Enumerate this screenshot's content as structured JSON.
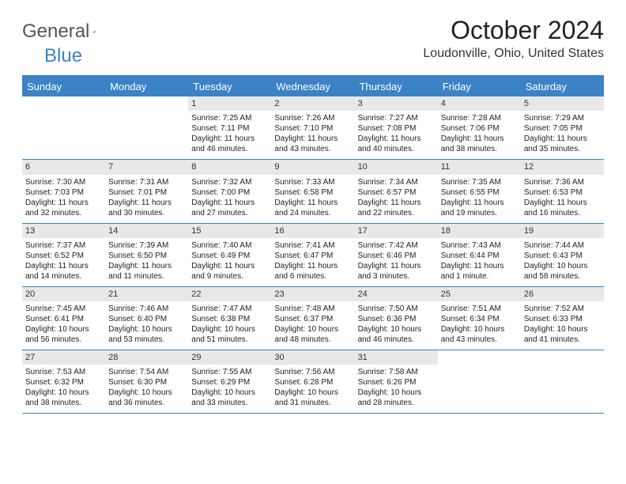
{
  "logo": {
    "text1": "General",
    "text2": "Blue"
  },
  "title": "October 2024",
  "location": "Loudonville, Ohio, United States",
  "colors": {
    "accent": "#3b82c7",
    "headerRow": "#e8e8e8",
    "background": "#ffffff",
    "text": "#222222"
  },
  "dayHeaders": [
    "Sunday",
    "Monday",
    "Tuesday",
    "Wednesday",
    "Thursday",
    "Friday",
    "Saturday"
  ],
  "weeks": [
    [
      {
        "n": "",
        "sr": "",
        "ss": "",
        "dl": ""
      },
      {
        "n": "",
        "sr": "",
        "ss": "",
        "dl": ""
      },
      {
        "n": "1",
        "sr": "Sunrise: 7:25 AM",
        "ss": "Sunset: 7:11 PM",
        "dl": "Daylight: 11 hours and 46 minutes."
      },
      {
        "n": "2",
        "sr": "Sunrise: 7:26 AM",
        "ss": "Sunset: 7:10 PM",
        "dl": "Daylight: 11 hours and 43 minutes."
      },
      {
        "n": "3",
        "sr": "Sunrise: 7:27 AM",
        "ss": "Sunset: 7:08 PM",
        "dl": "Daylight: 11 hours and 40 minutes."
      },
      {
        "n": "4",
        "sr": "Sunrise: 7:28 AM",
        "ss": "Sunset: 7:06 PM",
        "dl": "Daylight: 11 hours and 38 minutes."
      },
      {
        "n": "5",
        "sr": "Sunrise: 7:29 AM",
        "ss": "Sunset: 7:05 PM",
        "dl": "Daylight: 11 hours and 35 minutes."
      }
    ],
    [
      {
        "n": "6",
        "sr": "Sunrise: 7:30 AM",
        "ss": "Sunset: 7:03 PM",
        "dl": "Daylight: 11 hours and 32 minutes."
      },
      {
        "n": "7",
        "sr": "Sunrise: 7:31 AM",
        "ss": "Sunset: 7:01 PM",
        "dl": "Daylight: 11 hours and 30 minutes."
      },
      {
        "n": "8",
        "sr": "Sunrise: 7:32 AM",
        "ss": "Sunset: 7:00 PM",
        "dl": "Daylight: 11 hours and 27 minutes."
      },
      {
        "n": "9",
        "sr": "Sunrise: 7:33 AM",
        "ss": "Sunset: 6:58 PM",
        "dl": "Daylight: 11 hours and 24 minutes."
      },
      {
        "n": "10",
        "sr": "Sunrise: 7:34 AM",
        "ss": "Sunset: 6:57 PM",
        "dl": "Daylight: 11 hours and 22 minutes."
      },
      {
        "n": "11",
        "sr": "Sunrise: 7:35 AM",
        "ss": "Sunset: 6:55 PM",
        "dl": "Daylight: 11 hours and 19 minutes."
      },
      {
        "n": "12",
        "sr": "Sunrise: 7:36 AM",
        "ss": "Sunset: 6:53 PM",
        "dl": "Daylight: 11 hours and 16 minutes."
      }
    ],
    [
      {
        "n": "13",
        "sr": "Sunrise: 7:37 AM",
        "ss": "Sunset: 6:52 PM",
        "dl": "Daylight: 11 hours and 14 minutes."
      },
      {
        "n": "14",
        "sr": "Sunrise: 7:39 AM",
        "ss": "Sunset: 6:50 PM",
        "dl": "Daylight: 11 hours and 11 minutes."
      },
      {
        "n": "15",
        "sr": "Sunrise: 7:40 AM",
        "ss": "Sunset: 6:49 PM",
        "dl": "Daylight: 11 hours and 9 minutes."
      },
      {
        "n": "16",
        "sr": "Sunrise: 7:41 AM",
        "ss": "Sunset: 6:47 PM",
        "dl": "Daylight: 11 hours and 6 minutes."
      },
      {
        "n": "17",
        "sr": "Sunrise: 7:42 AM",
        "ss": "Sunset: 6:46 PM",
        "dl": "Daylight: 11 hours and 3 minutes."
      },
      {
        "n": "18",
        "sr": "Sunrise: 7:43 AM",
        "ss": "Sunset: 6:44 PM",
        "dl": "Daylight: 11 hours and 1 minute."
      },
      {
        "n": "19",
        "sr": "Sunrise: 7:44 AM",
        "ss": "Sunset: 6:43 PM",
        "dl": "Daylight: 10 hours and 58 minutes."
      }
    ],
    [
      {
        "n": "20",
        "sr": "Sunrise: 7:45 AM",
        "ss": "Sunset: 6:41 PM",
        "dl": "Daylight: 10 hours and 56 minutes."
      },
      {
        "n": "21",
        "sr": "Sunrise: 7:46 AM",
        "ss": "Sunset: 6:40 PM",
        "dl": "Daylight: 10 hours and 53 minutes."
      },
      {
        "n": "22",
        "sr": "Sunrise: 7:47 AM",
        "ss": "Sunset: 6:38 PM",
        "dl": "Daylight: 10 hours and 51 minutes."
      },
      {
        "n": "23",
        "sr": "Sunrise: 7:48 AM",
        "ss": "Sunset: 6:37 PM",
        "dl": "Daylight: 10 hours and 48 minutes."
      },
      {
        "n": "24",
        "sr": "Sunrise: 7:50 AM",
        "ss": "Sunset: 6:36 PM",
        "dl": "Daylight: 10 hours and 46 minutes."
      },
      {
        "n": "25",
        "sr": "Sunrise: 7:51 AM",
        "ss": "Sunset: 6:34 PM",
        "dl": "Daylight: 10 hours and 43 minutes."
      },
      {
        "n": "26",
        "sr": "Sunrise: 7:52 AM",
        "ss": "Sunset: 6:33 PM",
        "dl": "Daylight: 10 hours and 41 minutes."
      }
    ],
    [
      {
        "n": "27",
        "sr": "Sunrise: 7:53 AM",
        "ss": "Sunset: 6:32 PM",
        "dl": "Daylight: 10 hours and 38 minutes."
      },
      {
        "n": "28",
        "sr": "Sunrise: 7:54 AM",
        "ss": "Sunset: 6:30 PM",
        "dl": "Daylight: 10 hours and 36 minutes."
      },
      {
        "n": "29",
        "sr": "Sunrise: 7:55 AM",
        "ss": "Sunset: 6:29 PM",
        "dl": "Daylight: 10 hours and 33 minutes."
      },
      {
        "n": "30",
        "sr": "Sunrise: 7:56 AM",
        "ss": "Sunset: 6:28 PM",
        "dl": "Daylight: 10 hours and 31 minutes."
      },
      {
        "n": "31",
        "sr": "Sunrise: 7:58 AM",
        "ss": "Sunset: 6:26 PM",
        "dl": "Daylight: 10 hours and 28 minutes."
      },
      {
        "n": "",
        "sr": "",
        "ss": "",
        "dl": ""
      },
      {
        "n": "",
        "sr": "",
        "ss": "",
        "dl": ""
      }
    ]
  ]
}
